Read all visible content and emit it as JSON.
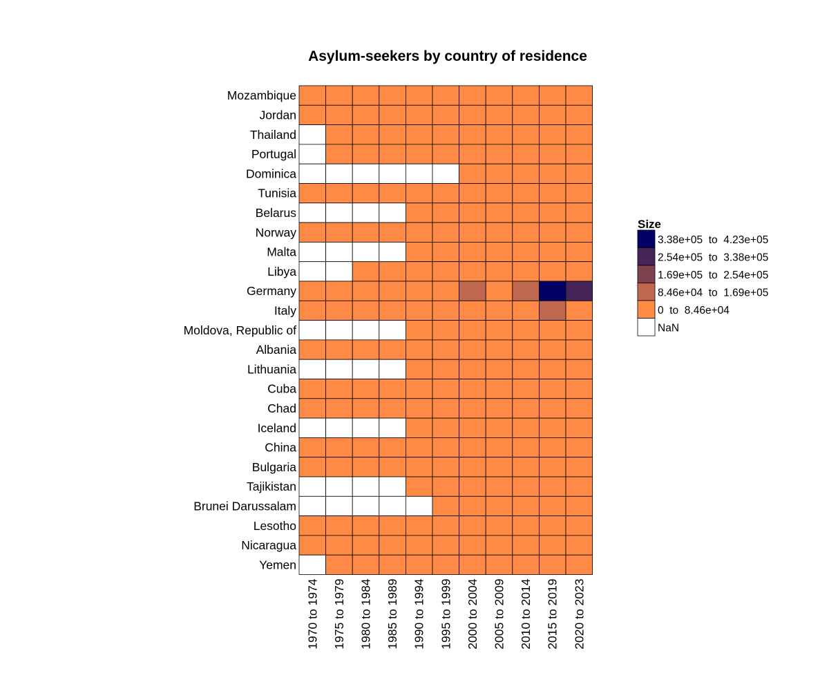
{
  "chart_data": {
    "type": "heatmap",
    "title": "Asylum-seekers by country of residence",
    "xlabel": "",
    "ylabel": "",
    "x_categories": [
      "1970 to 1974",
      "1975 to 1979",
      "1980 to 1984",
      "1985 to 1989",
      "1990 to 1994",
      "1995 to 1999",
      "2000 to 2004",
      "2005 to 2009",
      "2010 to 2014",
      "2015 to 2019",
      "2020 to 2023"
    ],
    "y_categories": [
      "Mozambique",
      "Jordan",
      "Thailand",
      "Portugal",
      "Dominica",
      "Tunisia",
      "Belarus",
      "Norway",
      "Malta",
      "Libya",
      "Germany",
      "Italy",
      "Moldova, Republic of",
      "Albania",
      "Lithuania",
      "Cuba",
      "Chad",
      "Iceland",
      "China",
      "Bulgaria",
      "Tajikistan",
      "Brunei Darussalam",
      "Lesotho",
      "Nicaragua",
      "Yemen"
    ],
    "cells": [
      [
        0,
        0,
        0,
        0,
        0,
        0,
        0,
        0,
        0,
        0,
        0
      ],
      [
        0,
        0,
        0,
        0,
        0,
        0,
        0,
        0,
        0,
        0,
        0
      ],
      [
        null,
        0,
        0,
        0,
        0,
        0,
        0,
        0,
        0,
        0,
        0
      ],
      [
        null,
        0,
        0,
        0,
        0,
        0,
        0,
        0,
        0,
        0,
        0
      ],
      [
        null,
        null,
        null,
        null,
        null,
        null,
        0,
        0,
        0,
        0,
        0
      ],
      [
        0,
        0,
        0,
        0,
        0,
        0,
        0,
        0,
        0,
        0,
        0
      ],
      [
        null,
        null,
        null,
        null,
        0,
        0,
        0,
        0,
        0,
        0,
        0
      ],
      [
        0,
        0,
        0,
        0,
        0,
        0,
        0,
        0,
        0,
        0,
        0
      ],
      [
        null,
        null,
        null,
        null,
        0,
        0,
        0,
        0,
        0,
        0,
        0
      ],
      [
        null,
        null,
        0,
        0,
        0,
        0,
        0,
        0,
        0,
        0,
        0
      ],
      [
        0,
        0,
        0,
        0,
        0,
        0,
        1,
        0,
        1,
        4,
        3
      ],
      [
        0,
        0,
        0,
        0,
        0,
        0,
        0,
        0,
        0,
        1,
        0
      ],
      [
        null,
        null,
        null,
        null,
        0,
        0,
        0,
        0,
        0,
        0,
        0
      ],
      [
        0,
        0,
        0,
        0,
        0,
        0,
        0,
        0,
        0,
        0,
        0
      ],
      [
        null,
        null,
        null,
        null,
        0,
        0,
        0,
        0,
        0,
        0,
        0
      ],
      [
        0,
        0,
        0,
        0,
        0,
        0,
        0,
        0,
        0,
        0,
        0
      ],
      [
        0,
        0,
        0,
        0,
        0,
        0,
        0,
        0,
        0,
        0,
        0
      ],
      [
        null,
        null,
        null,
        null,
        0,
        0,
        0,
        0,
        0,
        0,
        0
      ],
      [
        0,
        0,
        0,
        0,
        0,
        0,
        0,
        0,
        0,
        0,
        0
      ],
      [
        0,
        0,
        0,
        0,
        0,
        0,
        0,
        0,
        0,
        0,
        0
      ],
      [
        null,
        null,
        null,
        null,
        0,
        0,
        0,
        0,
        0,
        0,
        0
      ],
      [
        null,
        null,
        null,
        null,
        null,
        0,
        0,
        0,
        0,
        0,
        0
      ],
      [
        0,
        0,
        0,
        0,
        0,
        0,
        0,
        0,
        0,
        0,
        0
      ],
      [
        0,
        0,
        0,
        0,
        0,
        0,
        0,
        0,
        0,
        0,
        0
      ],
      [
        null,
        0,
        0,
        0,
        0,
        0,
        0,
        0,
        0,
        0,
        0
      ]
    ],
    "legend": {
      "title": "Size",
      "position": "right",
      "bins": [
        {
          "label": "3.38e+05  to  4.23e+05",
          "color": "#000066"
        },
        {
          "label": "2.54e+05  to  3.38e+05",
          "color": "#442459"
        },
        {
          "label": "1.69e+05  to  2.54e+05",
          "color": "#7e434f"
        },
        {
          "label": "8.46e+04  to  1.69e+05",
          "color": "#c0674f"
        },
        {
          "label": "0  to  8.46e+04",
          "color": "#ff8a45"
        },
        {
          "label": "NaN",
          "color": "#ffffff"
        }
      ]
    },
    "bin_index_legend_row": [
      4,
      3,
      2,
      1,
      0
    ],
    "grid": true
  }
}
